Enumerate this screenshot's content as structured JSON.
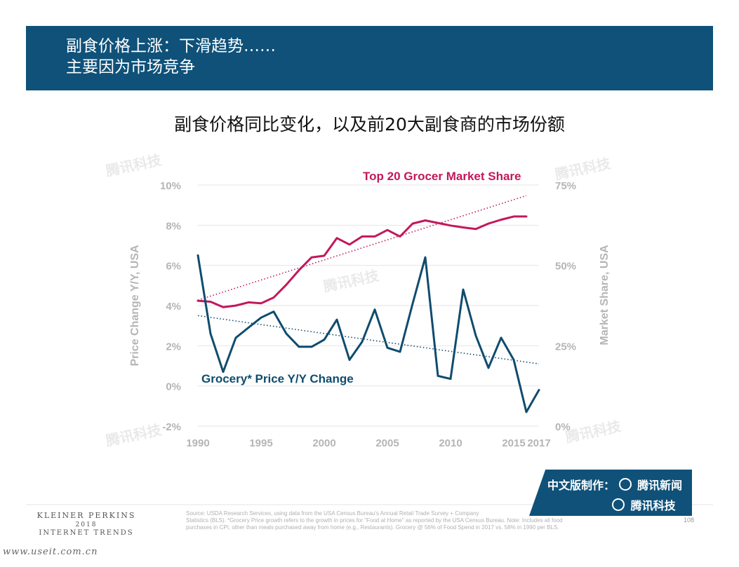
{
  "header": {
    "title_line1": "副食价格上涨：下滑趋势……",
    "title_line2": "主要因为市场竞争"
  },
  "chart_title": "副食价格同比变化，以及前20大副食商的市场份额",
  "chart_data": {
    "type": "line",
    "x_ticks": [
      "1990",
      "1995",
      "2000",
      "2005",
      "2010",
      "2015",
      "2017"
    ],
    "left_axis": {
      "label": "Price Change Y/Y, USA",
      "ticks": [
        "10%",
        "8%",
        "6%",
        "4%",
        "2%",
        "0%",
        "-2%"
      ],
      "range": [
        -2,
        10
      ]
    },
    "right_axis": {
      "label": "Market Share, USA",
      "ticks": [
        "75%",
        "50%",
        "25%",
        "0%"
      ],
      "range": [
        0,
        75
      ]
    },
    "grid": true,
    "series": [
      {
        "name": "Top 20 Grocer Market Share",
        "axis": "right",
        "color": "#c2185b",
        "x": [
          1990,
          1991,
          1992,
          1993,
          1994,
          1995,
          1996,
          1997,
          1998,
          1999,
          2000,
          2001,
          2002,
          2003,
          2004,
          2005,
          2006,
          2007,
          2008,
          2009,
          2010,
          2011,
          2012,
          2013,
          2014,
          2015,
          2016
        ],
        "y": [
          39,
          38.7,
          37,
          37.5,
          38.5,
          38.2,
          40,
          44,
          48.5,
          52.5,
          53,
          58.5,
          56.5,
          59,
          59,
          61,
          59,
          63,
          64,
          63.2,
          62.4,
          61.8,
          61.3,
          63,
          64.2,
          65.2,
          65.2
        ],
        "trend": [
          39.2,
          71.7
        ]
      },
      {
        "name": "Grocery* Price Y/Y Change",
        "axis": "left",
        "color": "#0f4c6e",
        "x": [
          1990,
          1991,
          1992,
          1993,
          1994,
          1995,
          1996,
          1997,
          1998,
          1999,
          2000,
          2001,
          2002,
          2003,
          2004,
          2005,
          2006,
          2007,
          2008,
          2009,
          2010,
          2011,
          2012,
          2013,
          2014,
          2015,
          2016,
          2017
        ],
        "y": [
          6.5,
          2.6,
          0.7,
          2.4,
          2.9,
          3.4,
          3.7,
          2.6,
          1.95,
          1.95,
          2.3,
          3.3,
          1.3,
          2.2,
          3.8,
          1.9,
          1.7,
          4.1,
          6.4,
          0.5,
          0.35,
          4.8,
          2.5,
          0.9,
          2.4,
          1.3,
          -1.3,
          -0.2
        ],
        "trend": [
          3.5,
          1.1
        ]
      }
    ]
  },
  "footer": {
    "logo_line1": "KLEINER PERKINS",
    "logo_line2": "2018",
    "logo_line3": "INTERNET TRENDS",
    "source_line1": "Source: USDA Research Services, using data from the USA Census Bureau's Annual Retail Trade Survey + Company",
    "source_line2": "Statistics (BLS). *Grocery Price growth refers to the growth in prices for \"Food at Home\" as reported by the USA Census Bureau. Note: Includes all food",
    "source_line3": "purchases in CPI, other than meals purchased away from home (e.g., Restaurants). Grocery @ 56% of Food Spend in 2017 vs. 58% in 1990 per BLS.",
    "page_number": "108"
  },
  "badge": {
    "label": "中文版制作：",
    "brand1": "腾讯新闻",
    "brand2": "腾讯科技"
  },
  "watermark": "腾讯科技",
  "site_url": "www.useit.com.cn"
}
